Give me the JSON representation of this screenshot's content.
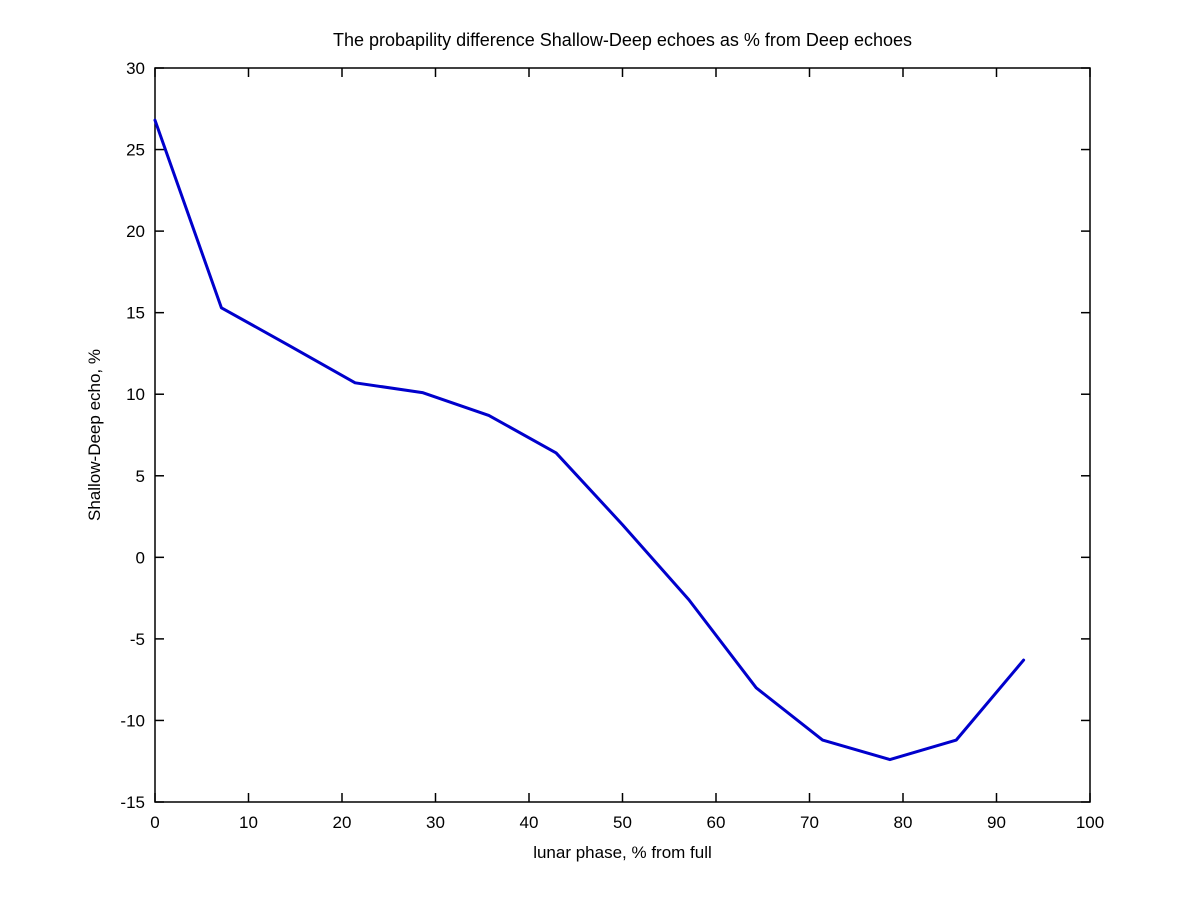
{
  "chart_data": {
    "type": "line",
    "title": "The probapility difference Shallow-Deep echoes as % from Deep echoes",
    "xlabel": "lunar phase, % from full",
    "ylabel": "Shallow-Deep echo, %",
    "xlim": [
      0,
      100
    ],
    "ylim": [
      -15,
      30
    ],
    "xticks": [
      0,
      10,
      20,
      30,
      40,
      50,
      60,
      70,
      80,
      90,
      100
    ],
    "yticks": [
      -15,
      -10,
      -5,
      0,
      5,
      10,
      15,
      20,
      25,
      30
    ],
    "grid": false,
    "legend": "none",
    "line_color": "#0000cc",
    "line_width": 3,
    "axis_color": "#000000",
    "background_color": "#ffffff",
    "x": [
      0,
      7.1,
      14.3,
      21.4,
      28.6,
      35.7,
      42.9,
      50.0,
      57.1,
      64.3,
      71.4,
      78.6,
      85.7,
      92.9
    ],
    "y": [
      26.8,
      15.3,
      13.0,
      10.7,
      10.1,
      8.7,
      6.4,
      2.0,
      -2.6,
      -8.0,
      -11.2,
      -12.4,
      -11.2,
      -6.3
    ]
  }
}
